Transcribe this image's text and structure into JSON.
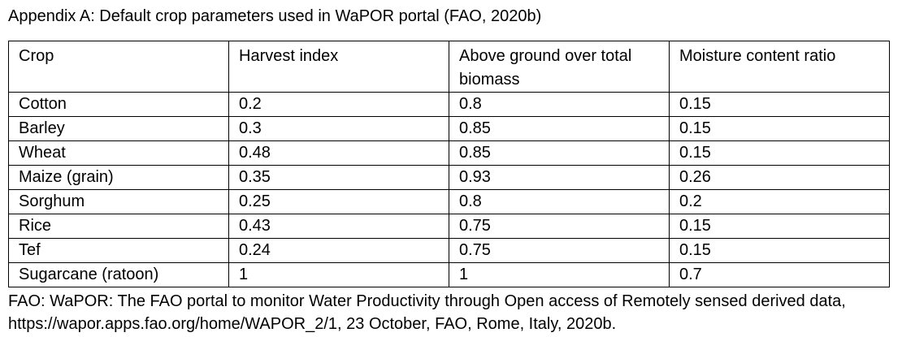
{
  "title": "Appendix A: Default crop parameters used in WaPOR portal (FAO, 2020b)",
  "table": {
    "headers": [
      "Crop",
      "Harvest index",
      "Above ground over total biomass",
      "Moisture content ratio"
    ],
    "rows": [
      [
        "Cotton",
        "0.2",
        "0.8",
        "0.15"
      ],
      [
        "Barley",
        "0.3",
        "0.85",
        "0.15"
      ],
      [
        "Wheat",
        "0.48",
        "0.85",
        "0.15"
      ],
      [
        "Maize (grain)",
        "0.35",
        "0.93",
        "0.26"
      ],
      [
        "Sorghum",
        "0.25",
        "0.8",
        "0.2"
      ],
      [
        "Rice",
        "0.43",
        "0.75",
        "0.15"
      ],
      [
        "Tef",
        "0.24",
        "0.75",
        "0.15"
      ],
      [
        "Sugarcane (ratoon)",
        "1",
        "1",
        "0.7"
      ]
    ]
  },
  "source": {
    "line1": "FAO: WaPOR: The FAO portal to monitor Water Productivity through Open access of Remotely sensed derived data,",
    "line2": "https://wapor.apps.fao.org/home/WAPOR_2/1, 23 October, FAO, Rome, Italy, 2020b."
  }
}
